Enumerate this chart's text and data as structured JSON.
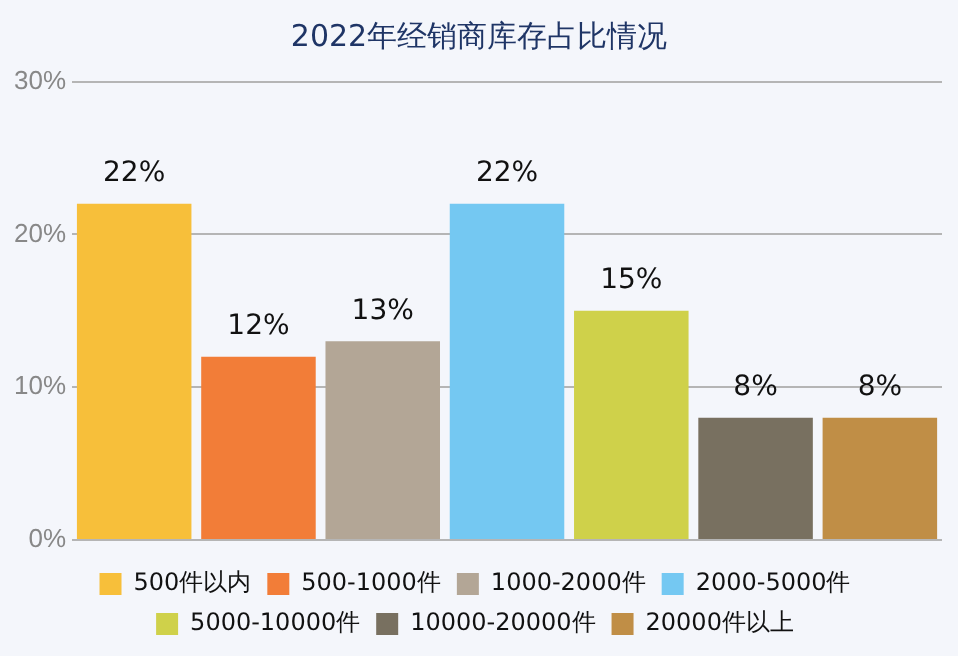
{
  "chart_data": {
    "type": "bar",
    "title": "2022年经销商库存占比情况",
    "categories": [
      null,
      null,
      null,
      null,
      null,
      null,
      null
    ],
    "series": [
      {
        "name": "500件以内",
        "color": "#f7bf3a",
        "values": [
          22,
          null,
          null,
          null,
          null,
          null,
          null
        ],
        "value_labels": [
          "22%",
          null,
          null,
          null,
          null,
          null,
          null
        ]
      },
      {
        "name": "500-1000件",
        "color": "#f27d38",
        "values": [
          null,
          12,
          null,
          null,
          null,
          null,
          null
        ],
        "value_labels": [
          null,
          "12%",
          null,
          null,
          null,
          null,
          null
        ]
      },
      {
        "name": "1000-2000件",
        "color": "#b3a696",
        "values": [
          null,
          null,
          13,
          null,
          null,
          null,
          null
        ],
        "value_labels": [
          null,
          null,
          "13%",
          null,
          null,
          null,
          null
        ]
      },
      {
        "name": "2000-5000件",
        "color": "#74c8f2",
        "values": [
          null,
          null,
          null,
          22,
          null,
          null,
          null
        ],
        "value_labels": [
          null,
          null,
          null,
          "22%",
          null,
          null,
          null
        ]
      },
      {
        "name": "5000-10000件",
        "color": "#cfd14a",
        "values": [
          null,
          null,
          null,
          null,
          15,
          null,
          null
        ],
        "value_labels": [
          null,
          null,
          null,
          null,
          "15%",
          null,
          null
        ]
      },
      {
        "name": "10000-20000件",
        "color": "#787060",
        "values": [
          null,
          null,
          null,
          null,
          null,
          8,
          null
        ],
        "value_labels": [
          null,
          null,
          null,
          null,
          null,
          "8%",
          null
        ]
      },
      {
        "name": "20000件以上",
        "color": "#c08e46",
        "values": [
          null,
          null,
          null,
          null,
          null,
          null,
          8
        ],
        "value_labels": [
          null,
          null,
          null,
          null,
          null,
          null,
          "8%"
        ]
      }
    ],
    "ylim": [
      0,
      30
    ],
    "yticks": [
      {
        "value": 0,
        "label": "0%"
      },
      {
        "value": 10,
        "label": "10%"
      },
      {
        "value": 20,
        "label": "20%"
      },
      {
        "value": 30,
        "label": "30%"
      }
    ],
    "grid": "y",
    "legend": "bottom",
    "tick_labels": "y"
  }
}
